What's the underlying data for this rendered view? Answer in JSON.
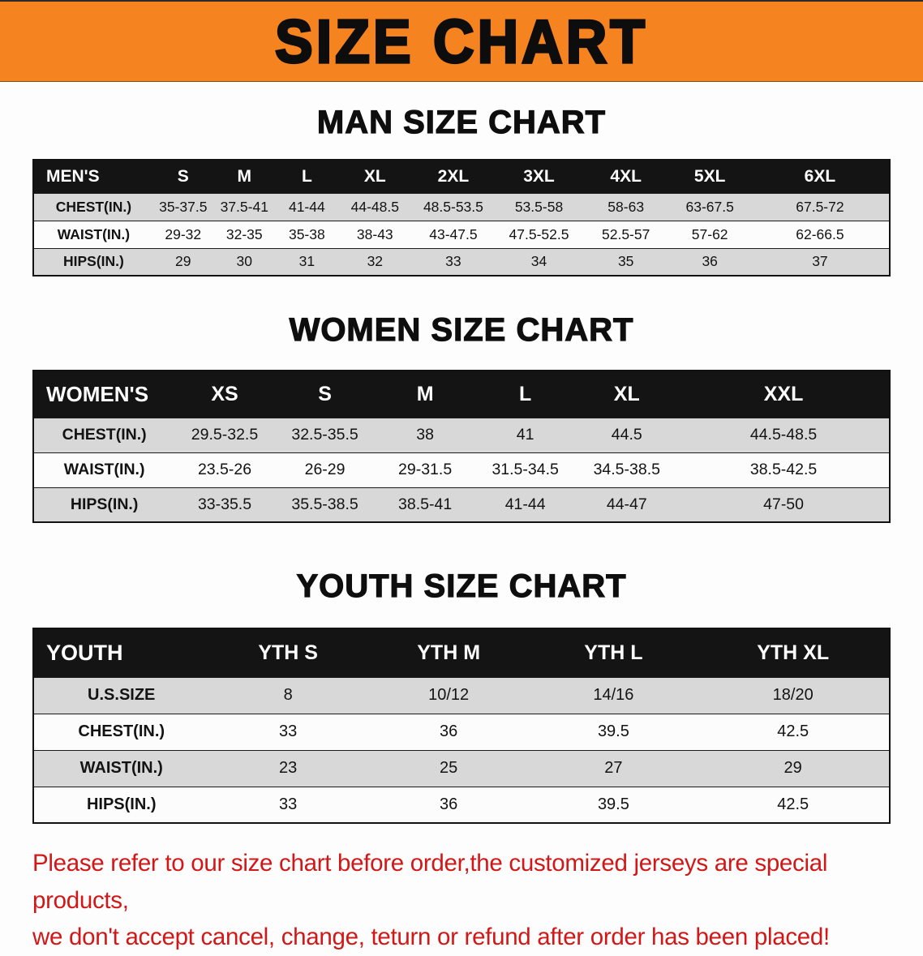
{
  "banner": {
    "title": "SIZE CHART"
  },
  "colors": {
    "banner_bg": "#f5831f",
    "header_bg": "#141414",
    "row_alt": "#d8d8d8",
    "disclaimer_red": "#d21717"
  },
  "chart_data": [
    {
      "type": "table",
      "title": "MAN SIZE CHART",
      "columns": [
        "MEN'S",
        "S",
        "M",
        "L",
        "XL",
        "2XL",
        "3XL",
        "4XL",
        "5XL",
        "6XL"
      ],
      "rows": [
        [
          "CHEST(IN.)",
          "35-37.5",
          "37.5-41",
          "41-44",
          "44-48.5",
          "48.5-53.5",
          "53.5-58",
          "58-63",
          "63-67.5",
          "67.5-72"
        ],
        [
          "WAIST(IN.)",
          "29-32",
          "32-35",
          "35-38",
          "38-43",
          "43-47.5",
          "47.5-52.5",
          "52.5-57",
          "57-62",
          "62-66.5"
        ],
        [
          "HIPS(IN.)",
          "29",
          "30",
          "31",
          "32",
          "33",
          "34",
          "35",
          "36",
          "37"
        ]
      ]
    },
    {
      "type": "table",
      "title": "WOMEN SIZE CHART",
      "columns": [
        "WOMEN'S",
        "XS",
        "S",
        "M",
        "L",
        "XL",
        "XXL"
      ],
      "rows": [
        [
          "CHEST(IN.)",
          "29.5-32.5",
          "32.5-35.5",
          "38",
          "41",
          "44.5",
          "44.5-48.5"
        ],
        [
          "WAIST(IN.)",
          "23.5-26",
          "26-29",
          "29-31.5",
          "31.5-34.5",
          "34.5-38.5",
          "38.5-42.5"
        ],
        [
          "HIPS(IN.)",
          "33-35.5",
          "35.5-38.5",
          "38.5-41",
          "41-44",
          "44-47",
          "47-50"
        ]
      ]
    },
    {
      "type": "table",
      "title": "YOUTH SIZE CHART",
      "columns": [
        "YOUTH",
        "YTH S",
        "YTH M",
        "YTH L",
        "YTH XL"
      ],
      "rows": [
        [
          "U.S.SIZE",
          "8",
          "10/12",
          "14/16",
          "18/20"
        ],
        [
          "CHEST(IN.)",
          "33",
          "36",
          "39.5",
          "42.5"
        ],
        [
          "WAIST(IN.)",
          "23",
          "25",
          "27",
          "29"
        ],
        [
          "HIPS(IN.)",
          "33",
          "36",
          "39.5",
          "42.5"
        ]
      ]
    }
  ],
  "disclaimer": {
    "lines": [
      "Please refer to our size chart before order,the customized jerseys are special products,",
      "we don't accept cancel, change, teturn or refund after order has been placed!"
    ]
  }
}
